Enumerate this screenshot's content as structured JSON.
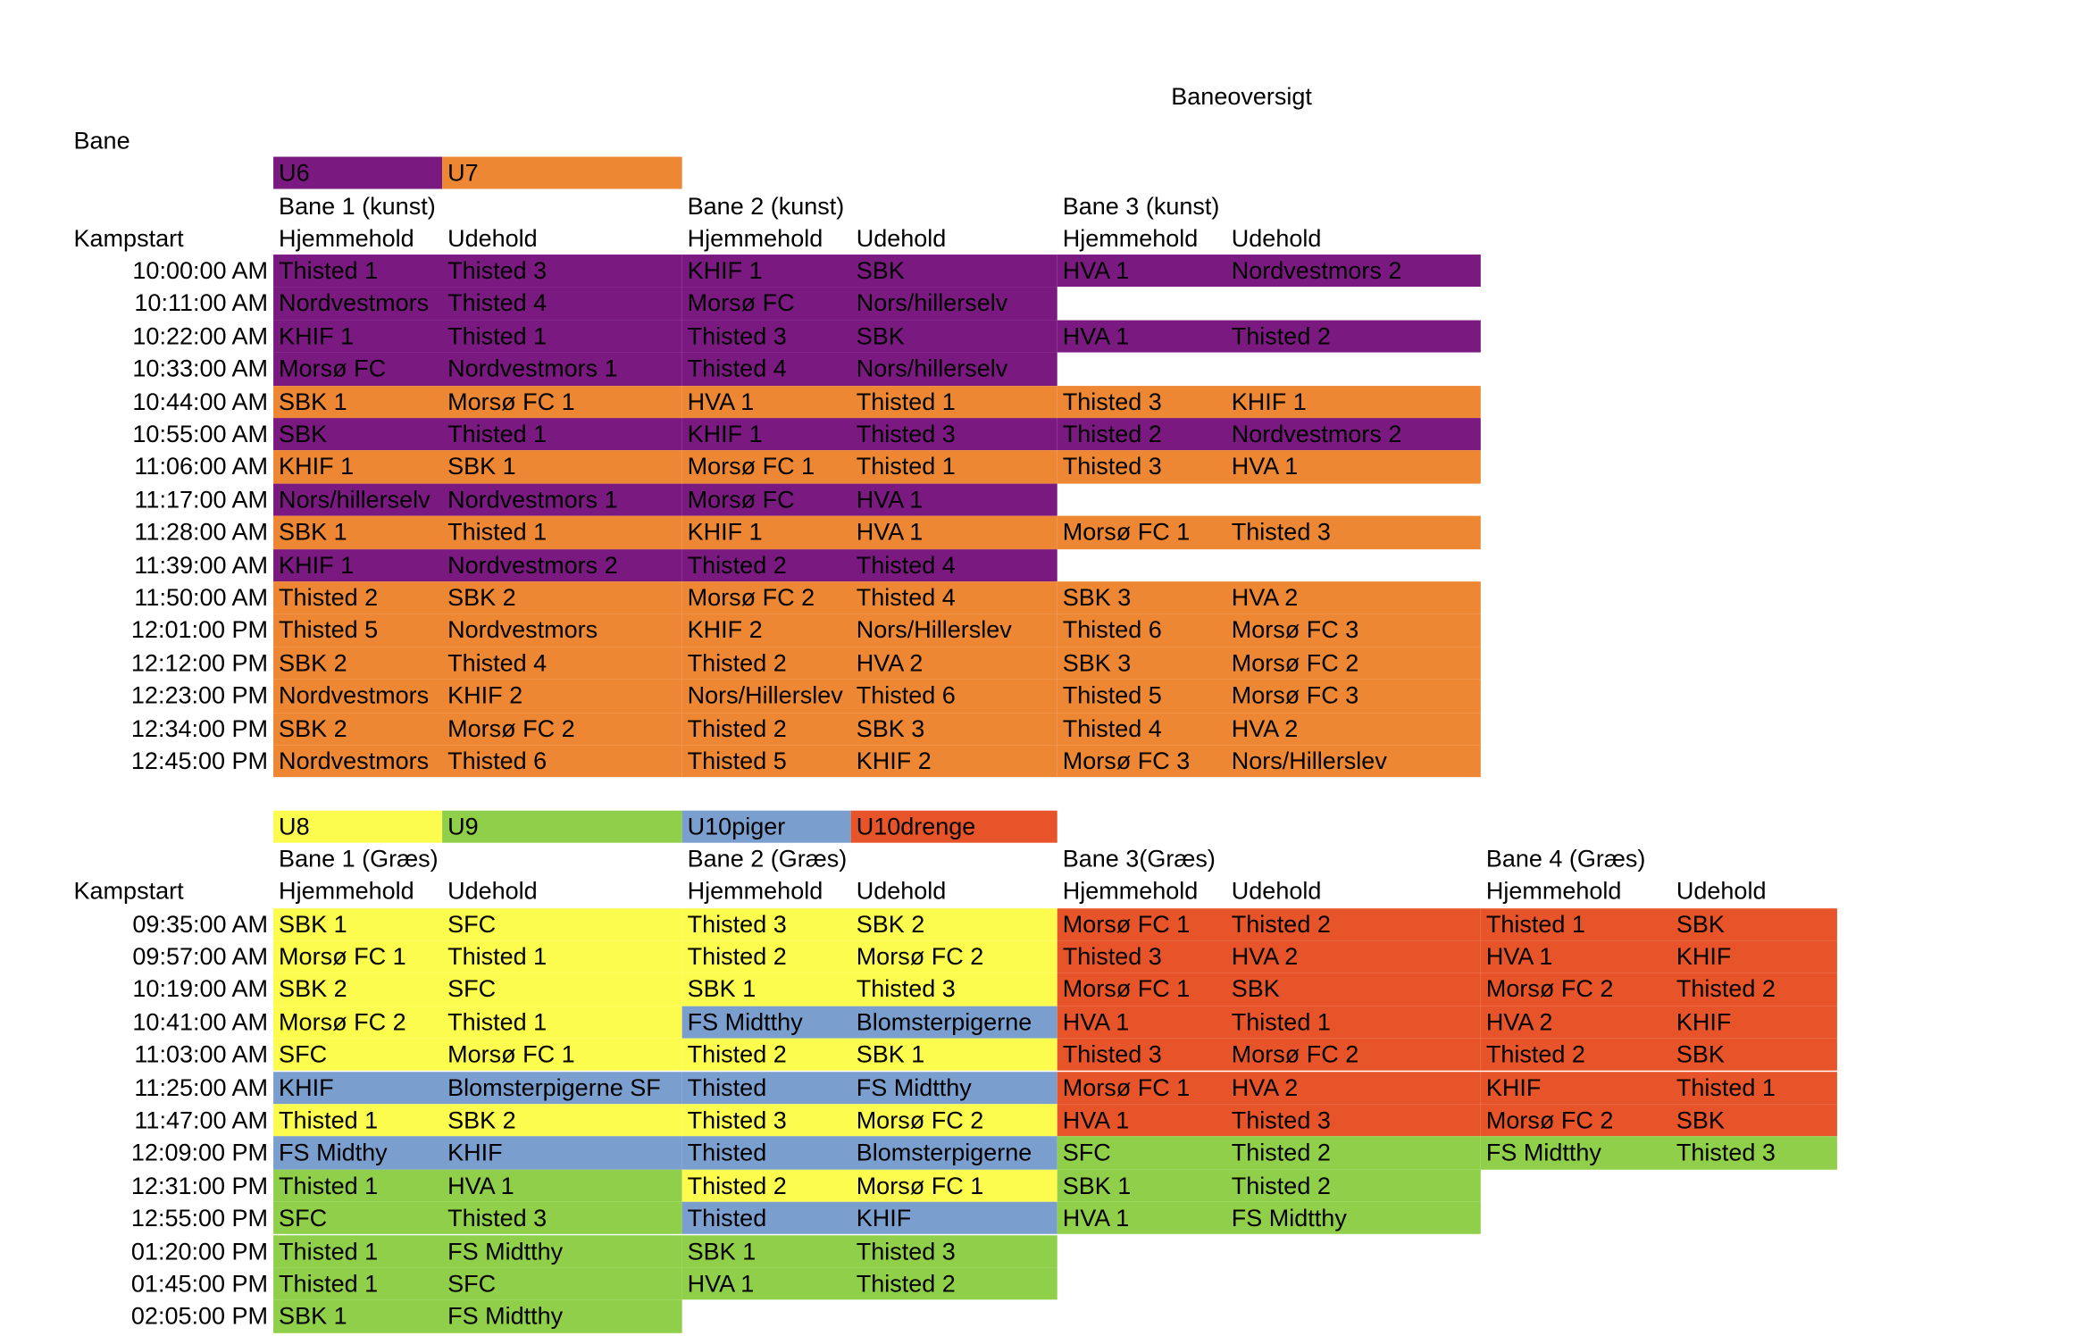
{
  "colors": {
    "U6": "#7a1a80",
    "U7": "#ee8734",
    "U8": "#fcfc4e",
    "U9": "#8fcf4a",
    "U10piger": "#7a9fcf",
    "U10drenge": "#e8542a"
  },
  "title": "Baneoversigt",
  "bane_label": "Bane",
  "section1": {
    "legend": [
      {
        "label": "U6",
        "cat": "U6"
      },
      {
        "label": "U7",
        "cat": "U7"
      }
    ],
    "fields": [
      "Bane 1 (kunst)",
      "Bane 2 (kunst)",
      "Bane 3 (kunst)"
    ],
    "kampstart": "Kampstart",
    "home_label": "Hjemmehold",
    "away_label": "Udehold",
    "rows": [
      {
        "time": "10:00:00 AM",
        "m": [
          [
            "U6",
            "Thisted 1",
            "Thisted 3"
          ],
          [
            "U6",
            "KHIF 1",
            "SBK"
          ],
          [
            "U6",
            "HVA 1",
            "Nordvestmors 2"
          ]
        ]
      },
      {
        "time": "10:11:00 AM",
        "m": [
          [
            "U6",
            "Nordvestmors",
            "Thisted 4"
          ],
          [
            "U6",
            "Morsø FC",
            "Nors/hillerselv"
          ]
        ]
      },
      {
        "time": "10:22:00 AM",
        "m": [
          [
            "U6",
            "KHIF 1",
            "Thisted 1"
          ],
          [
            "U6",
            "Thisted 3",
            "SBK"
          ],
          [
            "U6",
            "HVA 1",
            "Thisted 2"
          ]
        ]
      },
      {
        "time": "10:33:00 AM",
        "m": [
          [
            "U6",
            "Morsø FC",
            "Nordvestmors 1"
          ],
          [
            "U6",
            "Thisted 4",
            "Nors/hillerselv"
          ]
        ]
      },
      {
        "time": "10:44:00 AM",
        "m": [
          [
            "U7",
            "SBK 1",
            "Morsø FC 1"
          ],
          [
            "U7",
            "HVA 1",
            "Thisted 1"
          ],
          [
            "U7",
            "Thisted 3",
            "KHIF 1"
          ]
        ]
      },
      {
        "time": "10:55:00 AM",
        "m": [
          [
            "U6",
            "SBK",
            "Thisted 1"
          ],
          [
            "U6",
            "KHIF 1",
            "Thisted 3"
          ],
          [
            "U6",
            "Thisted 2",
            "Nordvestmors 2"
          ]
        ]
      },
      {
        "time": "11:06:00 AM",
        "m": [
          [
            "U7",
            "KHIF 1",
            "SBK 1"
          ],
          [
            "U7",
            "Morsø FC 1",
            "Thisted 1"
          ],
          [
            "U7",
            "Thisted 3",
            "HVA 1"
          ]
        ]
      },
      {
        "time": "11:17:00 AM",
        "m": [
          [
            "U6",
            "Nors/hillerselv",
            "Nordvestmors 1"
          ],
          [
            "U6",
            "Morsø FC",
            "HVA 1"
          ]
        ]
      },
      {
        "time": "11:28:00 AM",
        "m": [
          [
            "U7",
            "SBK 1",
            "Thisted 1"
          ],
          [
            "U7",
            "KHIF 1",
            "HVA 1"
          ],
          [
            "U7",
            "Morsø FC 1",
            "Thisted 3"
          ]
        ]
      },
      {
        "time": "11:39:00 AM",
        "m": [
          [
            "U6",
            "KHIF 1",
            "Nordvestmors 2"
          ],
          [
            "U6",
            "Thisted 2",
            "Thisted 4"
          ]
        ]
      },
      {
        "time": "11:50:00 AM",
        "m": [
          [
            "U7",
            "Thisted 2",
            "SBK 2"
          ],
          [
            "U7",
            "Morsø FC 2",
            "Thisted 4"
          ],
          [
            "U7",
            "SBK 3",
            "HVA 2"
          ]
        ]
      },
      {
        "time": "12:01:00 PM",
        "m": [
          [
            "U7",
            "Thisted 5",
            "Nordvestmors"
          ],
          [
            "U7",
            "KHIF 2",
            "Nors/Hillerslev"
          ],
          [
            "U7",
            "Thisted 6",
            "Morsø FC 3"
          ]
        ]
      },
      {
        "time": "12:12:00 PM",
        "m": [
          [
            "U7",
            "SBK 2",
            "Thisted 4"
          ],
          [
            "U7",
            "Thisted 2",
            "HVA 2"
          ],
          [
            "U7",
            "SBK 3",
            "Morsø FC 2"
          ]
        ]
      },
      {
        "time": "12:23:00 PM",
        "m": [
          [
            "U7",
            "Nordvestmors",
            "KHIF 2"
          ],
          [
            "U7",
            "Nors/Hillerslev",
            "Thisted 6"
          ],
          [
            "U7",
            "Thisted 5",
            "Morsø FC 3"
          ]
        ]
      },
      {
        "time": "12:34:00 PM",
        "m": [
          [
            "U7",
            "SBK 2",
            "Morsø FC 2"
          ],
          [
            "U7",
            "Thisted 2",
            "SBK 3"
          ],
          [
            "U7",
            "Thisted 4",
            "HVA 2"
          ]
        ]
      },
      {
        "time": "12:45:00 PM",
        "m": [
          [
            "U7",
            "Nordvestmors",
            "Thisted 6"
          ],
          [
            "U7",
            "Thisted 5",
            "KHIF 2"
          ],
          [
            "U7",
            "Morsø FC 3",
            "Nors/Hillerslev"
          ]
        ]
      }
    ]
  },
  "section2": {
    "legend": [
      {
        "label": "U8",
        "cat": "U8"
      },
      {
        "label": "U9",
        "cat": "U9"
      },
      {
        "label": "U10piger",
        "cat": "U10piger"
      },
      {
        "label": "U10drenge",
        "cat": "U10drenge"
      }
    ],
    "fields": [
      "Bane 1 (Græs)",
      "Bane 2 (Græs)",
      "Bane 3(Græs)",
      "Bane 4 (Græs)"
    ],
    "kampstart": "Kampstart",
    "home_label": "Hjemmehold",
    "away_label": "Udehold",
    "rows": [
      {
        "time": "09:35:00 AM",
        "m": [
          [
            "U8",
            "SBK 1",
            "SFC"
          ],
          [
            "U8",
            "Thisted 3",
            "SBK 2"
          ],
          [
            "U10drenge",
            "Morsø FC 1",
            "Thisted 2"
          ],
          [
            "U10drenge",
            "Thisted 1",
            "SBK"
          ]
        ]
      },
      {
        "time": "09:57:00 AM",
        "m": [
          [
            "U8",
            "Morsø FC 1",
            "Thisted 1"
          ],
          [
            "U8",
            "Thisted 2",
            "Morsø FC 2"
          ],
          [
            "U10drenge",
            "Thisted 3",
            "HVA 2"
          ],
          [
            "U10drenge",
            "HVA 1",
            "KHIF"
          ]
        ]
      },
      {
        "time": "10:19:00 AM",
        "m": [
          [
            "U8",
            "SBK 2",
            "SFC"
          ],
          [
            "U8",
            "SBK 1",
            "Thisted 3"
          ],
          [
            "U10drenge",
            "Morsø FC 1",
            "SBK"
          ],
          [
            "U10drenge",
            "Morsø FC 2",
            "Thisted 2"
          ]
        ]
      },
      {
        "time": "10:41:00 AM",
        "m": [
          [
            "U8",
            "Morsø FC 2",
            "Thisted 1"
          ],
          [
            "U10piger",
            "FS Midtthy",
            "Blomsterpigerne"
          ],
          [
            "U10drenge",
            "HVA 1",
            "Thisted 1"
          ],
          [
            "U10drenge",
            "HVA 2",
            "KHIF"
          ]
        ]
      },
      {
        "time": "11:03:00 AM",
        "m": [
          [
            "U8",
            "SFC",
            "Morsø FC 1"
          ],
          [
            "U8",
            "Thisted 2",
            "SBK 1"
          ],
          [
            "U10drenge",
            "Thisted 3",
            "Morsø FC 2"
          ],
          [
            "U10drenge",
            "Thisted 2",
            "SBK"
          ]
        ]
      },
      {
        "time": "11:25:00 AM",
        "m": [
          [
            "U10piger",
            "KHIF",
            "Blomsterpigerne SF"
          ],
          [
            "U10piger",
            "Thisted",
            "FS Midtthy"
          ],
          [
            "U10drenge",
            "Morsø FC 1",
            "HVA 2"
          ],
          [
            "U10drenge",
            "KHIF",
            "Thisted 1"
          ]
        ]
      },
      {
        "time": "11:47:00 AM",
        "m": [
          [
            "U8",
            "Thisted 1",
            "SBK 2"
          ],
          [
            "U8",
            "Thisted 3",
            "Morsø FC 2"
          ],
          [
            "U10drenge",
            "HVA 1",
            "Thisted 3"
          ],
          [
            "U10drenge",
            "Morsø FC 2",
            "SBK"
          ]
        ]
      },
      {
        "time": "12:09:00 PM",
        "m": [
          [
            "U10piger",
            "FS Midthy",
            "KHIF"
          ],
          [
            "U10piger",
            "Thisted",
            "Blomsterpigerne"
          ],
          [
            "U9",
            "SFC",
            "Thisted 2"
          ],
          [
            "U9",
            "FS Midtthy",
            "Thisted 3"
          ]
        ]
      },
      {
        "time": "12:31:00 PM",
        "m": [
          [
            "U9",
            "Thisted 1",
            "HVA 1"
          ],
          [
            "U8",
            "Thisted 2",
            "Morsø FC 1"
          ],
          [
            "U9",
            "SBK 1",
            "Thisted 2"
          ]
        ]
      },
      {
        "time": "12:55:00 PM",
        "m": [
          [
            "U9",
            "SFC",
            "Thisted 3"
          ],
          [
            "U10piger",
            "Thisted",
            "KHIF"
          ],
          [
            "U9",
            "HVA 1",
            "FS Midtthy"
          ]
        ]
      },
      {
        "time": "01:20:00 PM",
        "m": [
          [
            "U9",
            "Thisted 1",
            "FS Midtthy"
          ],
          [
            "U9",
            "SBK 1",
            "Thisted 3"
          ]
        ]
      },
      {
        "time": "01:45:00 PM",
        "m": [
          [
            "U9",
            "Thisted 1",
            "SFC"
          ],
          [
            "U9",
            "HVA 1",
            "Thisted 2"
          ]
        ]
      },
      {
        "time": "02:05:00 PM",
        "m": [
          [
            "U9",
            "SBK 1",
            "FS Midtthy"
          ]
        ]
      }
    ]
  }
}
